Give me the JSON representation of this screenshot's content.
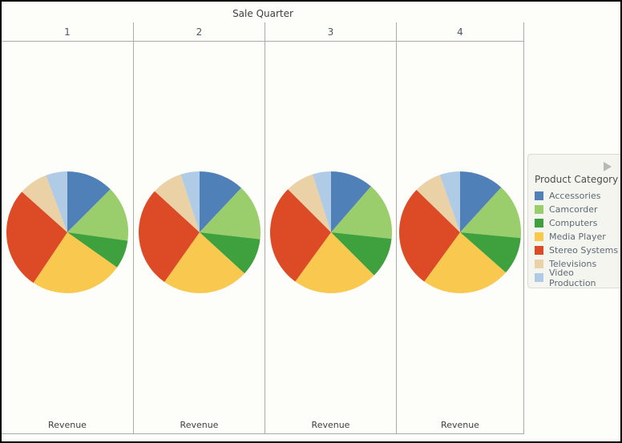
{
  "chart_data": {
    "type": "pie",
    "title": "Sale Quarter",
    "trellis_columns": [
      "1",
      "2",
      "3",
      "4"
    ],
    "x_axis_label": "Revenue",
    "legend_title": "Product Category",
    "categories": [
      "Accessories",
      "Camcorder",
      "Computers",
      "Media Player",
      "Stereo Systems",
      "Televisions",
      "Video Production"
    ],
    "colors": [
      "#4F81B8",
      "#9ACD6B",
      "#3FA03E",
      "#F8C84F",
      "#DC4A26",
      "#EAD1A6",
      "#AFCBE6"
    ],
    "start_angle": "12 o'clock",
    "direction": "clockwise",
    "legend_position": "right",
    "series": [
      {
        "name": "Quarter 1",
        "values_pct": [
          12.5,
          14.7,
          7.6,
          24.6,
          27.2,
          7.7,
          5.7
        ]
      },
      {
        "name": "Quarter 2",
        "values_pct": [
          12.0,
          14.8,
          10.0,
          23.0,
          27.0,
          8.2,
          5.0
        ]
      },
      {
        "name": "Quarter 3",
        "values_pct": [
          11.4,
          15.3,
          10.8,
          22.5,
          27.5,
          7.6,
          4.9
        ]
      },
      {
        "name": "Quarter 4",
        "values_pct": [
          11.8,
          14.7,
          10.0,
          23.5,
          27.3,
          7.3,
          5.4
        ]
      }
    ]
  },
  "ui": {
    "line_color": "#ABABA6",
    "background": "#FDFDFA",
    "legend_arrow_icon": "right-pointing-triangle"
  }
}
